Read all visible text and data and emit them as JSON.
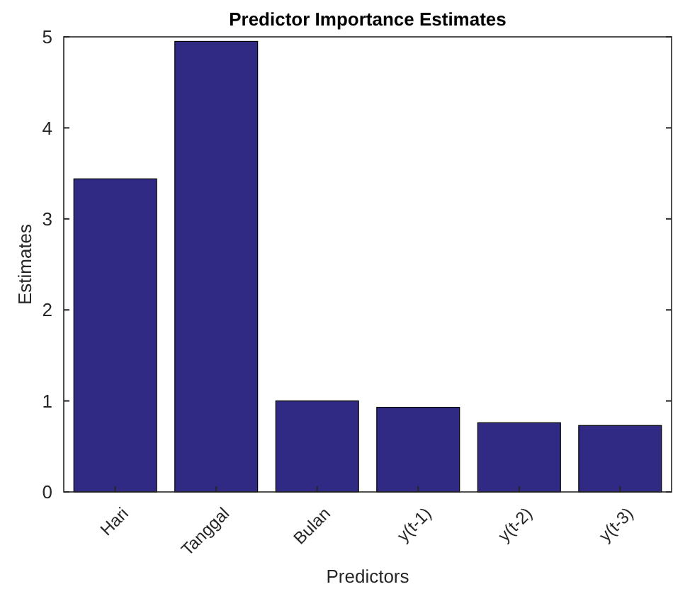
{
  "chart_data": {
    "type": "bar",
    "title": "Predictor Importance Estimates",
    "xlabel": "Predictors",
    "ylabel": "Estimates",
    "categories": [
      "Hari",
      "Tanggal",
      "Bulan",
      "y(t-1)",
      "y(t-2)",
      "y(t-3)"
    ],
    "values": [
      3.44,
      4.95,
      1.0,
      0.93,
      0.76,
      0.73
    ],
    "color": "#312a84",
    "ylim": [
      0,
      5
    ],
    "yticks": [
      0,
      1,
      2,
      3,
      4,
      5
    ],
    "grid": false
  }
}
